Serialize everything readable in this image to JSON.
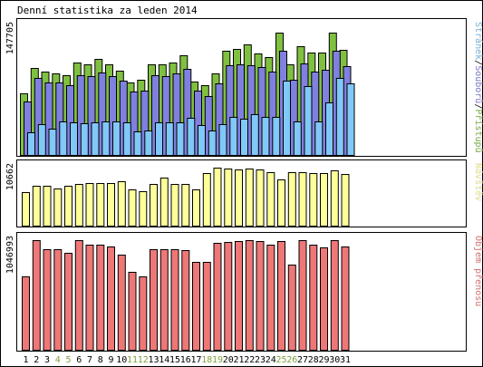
{
  "chart_data": {
    "type": "bar",
    "title": "Denní statistika za leden 2014",
    "categories": [
      "1",
      "2",
      "3",
      "4",
      "5",
      "6",
      "7",
      "8",
      "9",
      "10",
      "11",
      "12",
      "13",
      "14",
      "15",
      "16",
      "17",
      "18",
      "19",
      "20",
      "21",
      "22",
      "23",
      "24",
      "25",
      "26",
      "27",
      "28",
      "29",
      "30",
      "31"
    ],
    "weekend_days": [
      "4",
      "5",
      "11",
      "12",
      "18",
      "19",
      "25",
      "26"
    ],
    "colors": {
      "hits": "#80c040",
      "files": "#8080e0",
      "pages": "#80c8f8",
      "visits": "#ffff99",
      "kbytes": "#ee7777",
      "weekday_label": "#000000",
      "weekend_label": "#80a040",
      "frame": "#000000",
      "background": "#ffffff"
    },
    "panels": [
      {
        "name": "hits-files-pages",
        "ymax_label": "147705",
        "ymax": 147705,
        "right_label_parts": [
          {
            "text": "Stránek",
            "color": "#80c8f8"
          },
          {
            "text": "/",
            "color": "#000000"
          },
          {
            "text": "Souborů",
            "color": "#8080e0"
          },
          {
            "text": "/",
            "color": "#000000"
          },
          {
            "text": "Přístupů",
            "color": "#80c040"
          }
        ],
        "series": [
          {
            "name": "Přístupů",
            "color": "#80c040",
            "values": [
              71000,
              100000,
              96000,
              94000,
              92000,
              106000,
              104000,
              110000,
              104000,
              97000,
              83000,
              86000,
              104000,
              104000,
              106000,
              114000,
              84000,
              80000,
              94000,
              120000,
              122000,
              127000,
              117000,
              112000,
              140000,
              104000,
              125000,
              118000,
              118000,
              140000,
              121000
            ]
          },
          {
            "name": "Souborů",
            "color": "#8080e0",
            "values": [
              61000,
              88000,
              83000,
              83000,
              80000,
              92000,
              90000,
              95000,
              90000,
              85000,
              73000,
              74000,
              92000,
              91000,
              94000,
              99000,
              74000,
              68000,
              82000,
              103000,
              104000,
              103000,
              101000,
              96000,
              120000,
              86000,
              105000,
              96000,
              98000,
              120000,
              102000
            ]
          },
          {
            "name": "Stránek",
            "color": "#80c8f8",
            "values": [
              26000,
              35000,
              30000,
              39000,
              37000,
              36000,
              37000,
              38000,
              38000,
              37000,
              27000,
              28000,
              37000,
              37000,
              37000,
              43000,
              34000,
              28000,
              35000,
              44000,
              42000,
              47000,
              44000,
              44000,
              85000,
              38000,
              79000,
              39000,
              60000,
              88000,
              82000
            ]
          }
        ]
      },
      {
        "name": "visits",
        "ymax_label": "10662",
        "ymax": 10662,
        "right_label_parts": [
          {
            "text": "Návštěv",
            "color": "#ffff99"
          }
        ],
        "series": [
          {
            "name": "Návštěv",
            "color": "#ffff99",
            "values": [
              6200,
              7400,
              7400,
              6900,
              7300,
              7700,
              7800,
              7900,
              7800,
              8100,
              6700,
              6400,
              7600,
              8800,
              7700,
              7600,
              6600,
              9700,
              10662,
              10500,
              10400,
              10500,
              10400,
              9800,
              8500,
              9900,
              9900,
              9600,
              9700,
              10200,
              9500
            ]
          }
        ]
      },
      {
        "name": "kbytes",
        "ymax_label": "1046993",
        "ymax": 1046993,
        "right_label_parts": [
          {
            "text": "Objem přenosu",
            "color": "#ee7777"
          }
        ],
        "series": [
          {
            "name": "Objem přenosu",
            "color": "#ee7777",
            "values": [
              700000,
              1046993,
              960000,
              960000,
              930000,
              1046993,
              1000000,
              1000000,
              990000,
              910000,
              740000,
              700000,
              960000,
              960000,
              960000,
              950000,
              840000,
              840000,
              1020000,
              1030000,
              1040000,
              1046993,
              1040000,
              1000000,
              1040000,
              810000,
              1046993,
              1000000,
              980000,
              1046993,
              990000
            ]
          }
        ]
      }
    ]
  }
}
